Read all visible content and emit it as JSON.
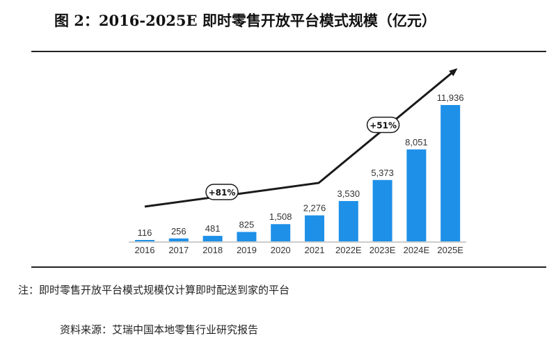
{
  "title": "图 2：2016-2025E 即时零售开放平台模式规模（亿元）",
  "note": "注：即时零售开放平台模式规模仅计算即时配送到家的平台",
  "source": "资料来源：艾瑞中国本地零售行业研究报告",
  "chart_data": {
    "type": "bar",
    "title": "图 2：2016-2025E 即时零售开放平台模式规模（亿元）",
    "categories": [
      "2016",
      "2017",
      "2018",
      "2019",
      "2020",
      "2021",
      "2022E",
      "2023E",
      "2024E",
      "2025E"
    ],
    "values": [
      116,
      256,
      481,
      825,
      1508,
      2276,
      3530,
      5373,
      8051,
      11936
    ],
    "value_labels": [
      "116",
      "256",
      "481",
      "825",
      "1,508",
      "2,276",
      "3,530",
      "5,373",
      "8,051",
      "11,936"
    ],
    "bar_color": "#1E90E8",
    "ylim": [
      0,
      13000
    ],
    "annotations": [
      {
        "label": "+81%",
        "range": [
          "2016",
          "2021"
        ]
      },
      {
        "label": "+51%",
        "range": [
          "2021",
          "2025E"
        ]
      }
    ],
    "grid": false,
    "legend": "none"
  },
  "colors": {
    "bar": "#1E90E8",
    "arrow": "#1a1a1a",
    "rule": "#222222"
  }
}
